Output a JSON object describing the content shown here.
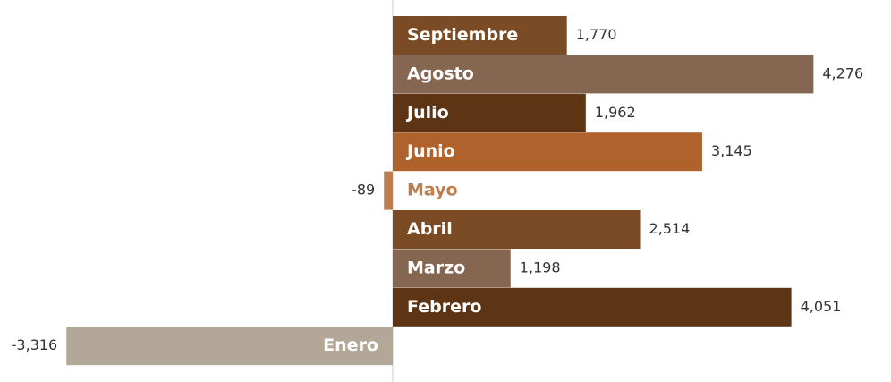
{
  "chart_data": {
    "type": "bar",
    "orientation": "horizontal",
    "categories": [
      "Septiembre",
      "Agosto",
      "Julio",
      "Junio",
      "Mayo",
      "Abril",
      "Marzo",
      "Febrero",
      "Enero"
    ],
    "values": [
      1770,
      4276,
      1962,
      3145,
      -89,
      2514,
      1198,
      4051,
      -3316
    ],
    "value_labels": [
      "1,770",
      "4,276",
      "1,962",
      "3,145",
      "-89",
      "2,514",
      "1,198",
      "4,051",
      "-3,316"
    ],
    "colors": [
      "#7a4b24",
      "#856650",
      "#5e3514",
      "#b0622c",
      "#bd7d4c",
      "#7a4b24",
      "#856650",
      "#5e3514",
      "#b3a898"
    ],
    "xlim": [
      -3500,
      4500
    ]
  }
}
